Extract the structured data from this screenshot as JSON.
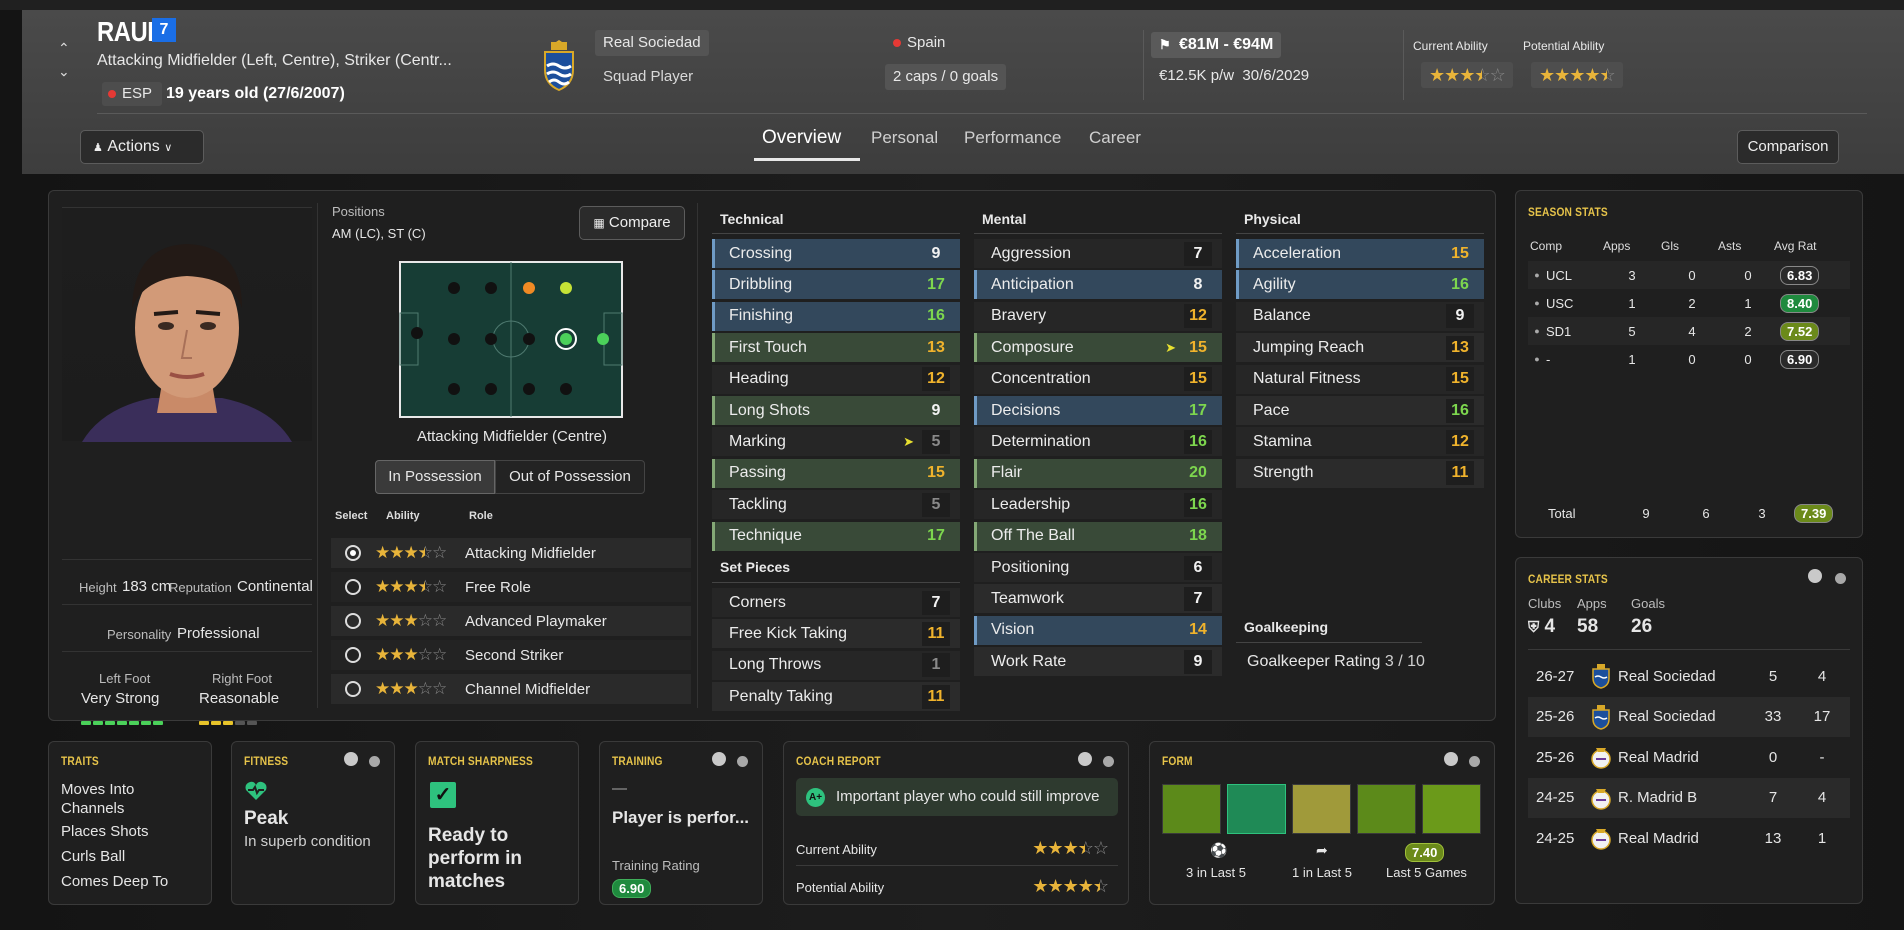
{
  "player": {
    "name": "RAUL",
    "shirt_number": "7",
    "positions_text": "Attacking Midfielder (Left, Centre), Striker (Centr...",
    "nationality_code": "ESP",
    "age_text": "19 years old (27/6/2007)",
    "club": "Real Sociedad",
    "squad_status": "Squad Player",
    "nation": "Spain",
    "caps": "2 caps / 0 goals",
    "value": "€81M - €94M",
    "wage": "€12.5K p/w",
    "contract_end": "30/6/2029",
    "current_ability_label": "Current Ability",
    "potential_ability_label": "Potential Ability",
    "current_ability_stars": 3.5,
    "potential_ability_stars": 4.5
  },
  "actions_label": "Actions",
  "tabs": [
    "Overview",
    "Personal",
    "Performance",
    "Career"
  ],
  "comparison_label": "Comparison",
  "profile": {
    "height_label": "Height",
    "height": "183 cm",
    "reputation_label": "Reputation",
    "reputation": "Continental",
    "personality_label": "Personality",
    "personality": "Professional",
    "left_foot_label": "Left Foot",
    "left_foot": "Very Strong",
    "right_foot_label": "Right Foot",
    "right_foot": "Reasonable"
  },
  "positions": {
    "label": "Positions",
    "value": "AM (LC), ST (C)",
    "compare_label": "Compare",
    "selected_position": "Attacking Midfielder (Centre)",
    "toggle": [
      "In Possession",
      "Out of Possession"
    ],
    "col_select": "Select",
    "col_ability": "Ability",
    "col_role": "Role",
    "roles": [
      {
        "name": "Attacking Midfielder",
        "stars": 3.5,
        "selected": true
      },
      {
        "name": "Free Role",
        "stars": 3.5,
        "selected": false
      },
      {
        "name": "Advanced Playmaker",
        "stars": 3,
        "selected": false
      },
      {
        "name": "Second Striker",
        "stars": 3,
        "selected": false
      },
      {
        "name": "Channel Midfielder",
        "stars": 3,
        "selected": false
      }
    ]
  },
  "attributes": {
    "technical_label": "Technical",
    "technical": [
      {
        "name": "Crossing",
        "value": "9",
        "hl": "blue",
        "col": "w"
      },
      {
        "name": "Dribbling",
        "value": "17",
        "hl": "blue",
        "col": "g"
      },
      {
        "name": "Finishing",
        "value": "16",
        "hl": "blue",
        "col": "g"
      },
      {
        "name": "First Touch",
        "value": "13",
        "hl": "green",
        "col": "o"
      },
      {
        "name": "Heading",
        "value": "12",
        "hl": "",
        "col": "o"
      },
      {
        "name": "Long Shots",
        "value": "9",
        "hl": "green",
        "col": "w"
      },
      {
        "name": "Marking",
        "value": "5",
        "hl": "",
        "col": "d",
        "arrow": true
      },
      {
        "name": "Passing",
        "value": "15",
        "hl": "green",
        "col": "o"
      },
      {
        "name": "Tackling",
        "value": "5",
        "hl": "",
        "col": "d"
      },
      {
        "name": "Technique",
        "value": "17",
        "hl": "green",
        "col": "g"
      }
    ],
    "set_pieces_label": "Set Pieces",
    "set_pieces": [
      {
        "name": "Corners",
        "value": "7",
        "hl": "",
        "col": "w"
      },
      {
        "name": "Free Kick Taking",
        "value": "11",
        "hl": "",
        "col": "o"
      },
      {
        "name": "Long Throws",
        "value": "1",
        "hl": "",
        "col": "d"
      },
      {
        "name": "Penalty Taking",
        "value": "11",
        "hl": "",
        "col": "o"
      }
    ],
    "mental_label": "Mental",
    "mental": [
      {
        "name": "Aggression",
        "value": "7",
        "hl": "",
        "col": "w"
      },
      {
        "name": "Anticipation",
        "value": "8",
        "hl": "blue",
        "col": "w"
      },
      {
        "name": "Bravery",
        "value": "12",
        "hl": "",
        "col": "o"
      },
      {
        "name": "Composure",
        "value": "15",
        "hl": "green",
        "col": "o",
        "arrow": true
      },
      {
        "name": "Concentration",
        "value": "15",
        "hl": "",
        "col": "o"
      },
      {
        "name": "Decisions",
        "value": "17",
        "hl": "blue",
        "col": "g"
      },
      {
        "name": "Determination",
        "value": "16",
        "hl": "",
        "col": "g"
      },
      {
        "name": "Flair",
        "value": "20",
        "hl": "green",
        "col": "g"
      },
      {
        "name": "Leadership",
        "value": "16",
        "hl": "",
        "col": "g"
      },
      {
        "name": "Off The Ball",
        "value": "18",
        "hl": "green",
        "col": "g"
      },
      {
        "name": "Positioning",
        "value": "6",
        "hl": "",
        "col": "w"
      },
      {
        "name": "Teamwork",
        "value": "7",
        "hl": "",
        "col": "w"
      },
      {
        "name": "Vision",
        "value": "14",
        "hl": "blue",
        "col": "o"
      },
      {
        "name": "Work Rate",
        "value": "9",
        "hl": "",
        "col": "w"
      }
    ],
    "physical_label": "Physical",
    "physical": [
      {
        "name": "Acceleration",
        "value": "15",
        "hl": "blue",
        "col": "o"
      },
      {
        "name": "Agility",
        "value": "16",
        "hl": "blue",
        "col": "g"
      },
      {
        "name": "Balance",
        "value": "9",
        "hl": "",
        "col": "w"
      },
      {
        "name": "Jumping Reach",
        "value": "13",
        "hl": "",
        "col": "o"
      },
      {
        "name": "Natural Fitness",
        "value": "15",
        "hl": "",
        "col": "o"
      },
      {
        "name": "Pace",
        "value": "16",
        "hl": "",
        "col": "g"
      },
      {
        "name": "Stamina",
        "value": "12",
        "hl": "",
        "col": "o"
      },
      {
        "name": "Strength",
        "value": "11",
        "hl": "",
        "col": "o"
      }
    ],
    "goalkeeping_label": "Goalkeeping",
    "gk_rating_label": "Goalkeeper Rating",
    "gk_rating": "3 / 10"
  },
  "season_stats": {
    "title": "SEASON STATS",
    "headers": [
      "Comp",
      "Apps",
      "Gls",
      "Asts",
      "Avg Rat"
    ],
    "rows": [
      {
        "comp": "UCL",
        "apps": "3",
        "gls": "0",
        "asts": "0",
        "rat": "6.83",
        "rc": "#2a2a2a"
      },
      {
        "comp": "USC",
        "apps": "1",
        "gls": "2",
        "asts": "1",
        "rat": "8.40",
        "rc": "#1f8a3e"
      },
      {
        "comp": "SD1",
        "apps": "5",
        "gls": "4",
        "asts": "2",
        "rat": "7.52",
        "rc": "#6b8a1a"
      },
      {
        "comp": "-",
        "apps": "1",
        "gls": "0",
        "asts": "0",
        "rat": "6.90",
        "rc": "#2a2a2a"
      }
    ],
    "total_label": "Total",
    "total": {
      "apps": "9",
      "gls": "6",
      "asts": "3",
      "rat": "7.39"
    }
  },
  "career_stats": {
    "title": "CAREER STATS",
    "clubs_label": "Clubs",
    "apps_label": "Apps",
    "goals_label": "Goals",
    "clubs": "4",
    "apps": "58",
    "goals": "26",
    "rows": [
      {
        "season": "26-27",
        "club": "Real Sociedad",
        "apps": "5",
        "goals": "4",
        "badge": "rs"
      },
      {
        "season": "25-26",
        "club": "Real Sociedad",
        "apps": "33",
        "goals": "17",
        "badge": "rs"
      },
      {
        "season": "25-26",
        "club": "Real Madrid",
        "apps": "0",
        "goals": "-",
        "badge": "rm"
      },
      {
        "season": "24-25",
        "club": "R. Madrid B",
        "apps": "7",
        "goals": "4",
        "badge": "rm"
      },
      {
        "season": "24-25",
        "club": "Real Madrid",
        "apps": "13",
        "goals": "1",
        "badge": "rm"
      }
    ]
  },
  "traits": {
    "title": "TRAITS",
    "items": [
      "Moves Into Channels",
      "Places Shots",
      "Curls Ball",
      "Comes Deep To"
    ]
  },
  "fitness": {
    "title": "FITNESS",
    "status": "Peak",
    "desc": "In superb condition"
  },
  "sharpness": {
    "title": "MATCH SHARPNESS",
    "status": "Ready to perform in matches"
  },
  "training": {
    "title": "TRAINING",
    "dash": "—",
    "status": "Player is perfor...",
    "rating_label": "Training Rating",
    "rating": "6.90"
  },
  "coach": {
    "title": "COACH REPORT",
    "summary": "Important player who could still improve",
    "current_label": "Current Ability",
    "potential_label": "Potential Ability",
    "current_stars": 3.5,
    "potential_stars": 4.5
  },
  "form": {
    "title": "FORM",
    "bar_colors": [
      "#5c8a1a",
      "#1f8a56",
      "#a09a3a",
      "#5c8a1a",
      "#6b9a1a"
    ],
    "goals_text": "3 in Last 5",
    "assists_text": "1 in Last 5",
    "avg_rating": "7.40",
    "avg_label": "Last 5 Games"
  }
}
